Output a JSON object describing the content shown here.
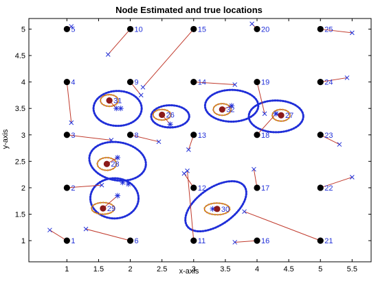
{
  "chart_data": {
    "type": "scatter",
    "title": "Node Estimated and true locations",
    "xlabel": "x-axis",
    "ylabel": "y-axis",
    "xlim": [
      0.4,
      5.8
    ],
    "ylim": [
      0.6,
      5.2
    ],
    "xticks": [
      1,
      1.5,
      2,
      2.5,
      3,
      3.5,
      4,
      4.5,
      5,
      5.5
    ],
    "yticks": [
      1,
      1.5,
      2,
      2.5,
      3,
      3.5,
      4,
      4.5,
      5
    ],
    "grid": false,
    "colors": {
      "node": "#000000",
      "anchor": "#8b1a1a",
      "label": "#1f2ed8",
      "estimate": "#1f2ed8",
      "error_line": "#c0392b",
      "ellipse_outer": "#1f2ed8",
      "ellipse_inner_a": "#c0392b",
      "ellipse_inner_b": "#d4a017"
    },
    "nodes": [
      {
        "id": "1",
        "x": 1,
        "y": 1,
        "est": [
          0.73,
          1.2
        ]
      },
      {
        "id": "2",
        "x": 1,
        "y": 2,
        "est": [
          1.55,
          2.05
        ]
      },
      {
        "id": "3",
        "x": 1,
        "y": 3,
        "est": [
          1.7,
          2.9
        ]
      },
      {
        "id": "4",
        "x": 1,
        "y": 4,
        "est": [
          1.07,
          3.23
        ]
      },
      {
        "id": "5",
        "x": 1,
        "y": 5,
        "est": [
          1.07,
          5.05
        ]
      },
      {
        "id": "6",
        "x": 2,
        "y": 1,
        "est": [
          1.3,
          1.22
        ]
      },
      {
        "id": "8",
        "x": 2,
        "y": 3,
        "est": [
          2.45,
          2.87
        ]
      },
      {
        "id": "9",
        "x": 2,
        "y": 4,
        "est": [
          2.17,
          3.75
        ]
      },
      {
        "id": "10",
        "x": 2,
        "y": 5,
        "est": [
          1.65,
          4.52
        ]
      },
      {
        "id": "11",
        "x": 3,
        "y": 1,
        "est": [
          2.9,
          2.32
        ]
      },
      {
        "id": "12",
        "x": 3,
        "y": 2,
        "est": [
          2.85,
          2.27
        ]
      },
      {
        "id": "13",
        "x": 3,
        "y": 3,
        "est": [
          2.92,
          2.72
        ]
      },
      {
        "id": "14",
        "x": 3,
        "y": 4,
        "est": [
          3.65,
          3.95
        ]
      },
      {
        "id": "15",
        "x": 3,
        "y": 5,
        "est": [
          2.2,
          3.9
        ]
      },
      {
        "id": "16",
        "x": 4,
        "y": 1,
        "est": [
          3.65,
          0.97
        ]
      },
      {
        "id": "17",
        "x": 4,
        "y": 2,
        "est": [
          3.95,
          2.35
        ]
      },
      {
        "id": "18",
        "x": 4,
        "y": 3,
        "est": [
          4.3,
          3.4
        ]
      },
      {
        "id": "19",
        "x": 4,
        "y": 4,
        "est": [
          4.12,
          3.4
        ]
      },
      {
        "id": "20",
        "x": 4,
        "y": 5,
        "est": [
          3.92,
          5.1
        ]
      },
      {
        "id": "21",
        "x": 5,
        "y": 1,
        "est": [
          3.8,
          1.55
        ]
      },
      {
        "id": "22",
        "x": 5,
        "y": 2,
        "est": [
          5.5,
          2.2
        ]
      },
      {
        "id": "23",
        "x": 5,
        "y": 3,
        "est": [
          5.3,
          2.82
        ]
      },
      {
        "id": "24",
        "x": 5,
        "y": 4,
        "est": [
          5.42,
          4.08
        ]
      },
      {
        "id": "25",
        "x": 5,
        "y": 5,
        "est": [
          5.5,
          4.93
        ]
      }
    ],
    "anchors": [
      {
        "id": "26",
        "x": 2.5,
        "y": 3.38,
        "est": [
          2.63,
          3.2
        ]
      },
      {
        "id": "27",
        "x": 4.38,
        "y": 3.37,
        "est": [
          4.3,
          3.4
        ]
      },
      {
        "id": "28",
        "x": 1.63,
        "y": 2.45,
        "est": [
          1.8,
          2.57
        ]
      },
      {
        "id": "29",
        "x": 1.57,
        "y": 1.61,
        "est": [
          1.8,
          1.85
        ]
      },
      {
        "id": "30",
        "x": 3.37,
        "y": 1.6,
        "est": [
          3.3,
          1.6
        ]
      },
      {
        "id": "31",
        "x": 1.67,
        "y": 3.65,
        "est": [
          1.78,
          3.5
        ]
      },
      {
        "id": "32",
        "x": 3.45,
        "y": 3.48,
        "est": [
          3.6,
          3.55
        ]
      }
    ],
    "extra_estimates": [
      [
        1.88,
        2.1
      ],
      [
        1.97,
        2.07
      ],
      [
        1.85,
        3.5
      ]
    ],
    "ellipses": [
      {
        "cx": 1.8,
        "cy": 3.5,
        "rx": 0.38,
        "ry": 0.33,
        "rot": 0
      },
      {
        "cx": 2.63,
        "cy": 3.35,
        "rx": 0.3,
        "ry": 0.21,
        "rot": 0
      },
      {
        "cx": 3.6,
        "cy": 3.55,
        "rx": 0.42,
        "ry": 0.3,
        "rot": 0
      },
      {
        "cx": 4.3,
        "cy": 3.35,
        "rx": 0.43,
        "ry": 0.3,
        "rot": 0
      },
      {
        "cx": 1.8,
        "cy": 2.5,
        "rx": 0.45,
        "ry": 0.36,
        "rot": -10
      },
      {
        "cx": 1.75,
        "cy": 1.8,
        "rx": 0.38,
        "ry": 0.38,
        "rot": 0
      },
      {
        "cx": 3.35,
        "cy": 1.65,
        "rx": 0.55,
        "ry": 0.35,
        "rot": 35
      }
    ],
    "inner_ellipses": [
      {
        "cx": 1.67,
        "cy": 3.65,
        "rx": 0.14,
        "ry": 0.11
      },
      {
        "cx": 2.5,
        "cy": 3.38,
        "rx": 0.14,
        "ry": 0.1
      },
      {
        "cx": 3.45,
        "cy": 3.48,
        "rx": 0.14,
        "ry": 0.11
      },
      {
        "cx": 4.38,
        "cy": 3.37,
        "rx": 0.14,
        "ry": 0.11
      },
      {
        "cx": 1.63,
        "cy": 2.45,
        "rx": 0.15,
        "ry": 0.12
      },
      {
        "cx": 1.57,
        "cy": 1.61,
        "rx": 0.18,
        "ry": 0.11
      },
      {
        "cx": 3.37,
        "cy": 1.6,
        "rx": 0.2,
        "ry": 0.11
      }
    ]
  }
}
